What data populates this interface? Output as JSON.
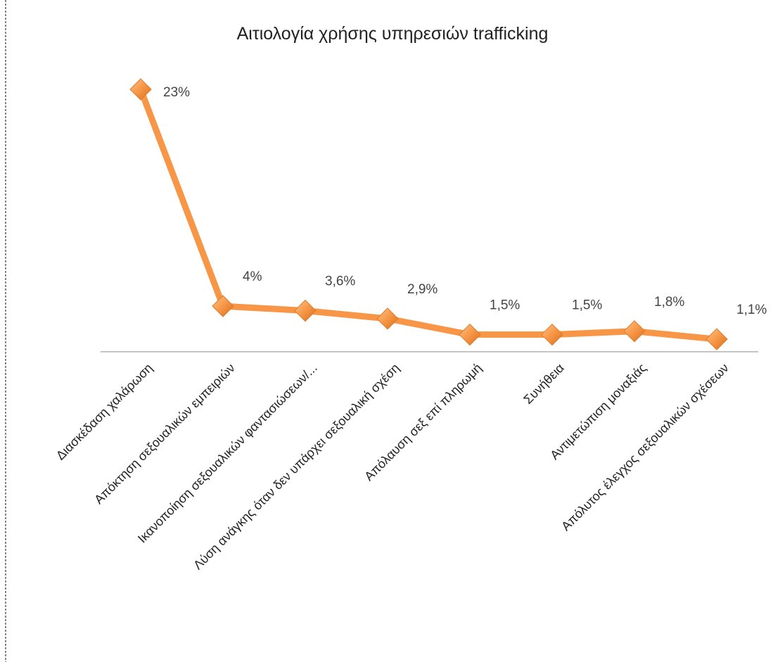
{
  "chart_data": {
    "type": "line",
    "title": "Αιτιολογία χρήσης υπηρεσιών trafficking",
    "categories": [
      "Διασκέδαση χαλάρωση",
      "Απόκτηση σεξουαλικών εμπειριών",
      "Ικανοποίηση σεξουαλικών φαντασιώσεων/...",
      "Λύση ανάγκης όταν δεν υπάρχει σεξουαλική σχέση",
      "Απόλαυση σεξ επί πληρωμή",
      "Συνήθεια",
      "Αντιμετώπιση μοναξιάς",
      "Απόλυτος έλεγχος σεξουαλικών σχέσεων"
    ],
    "series": [
      {
        "name": null,
        "color": "#f79646",
        "values": [
          23,
          4,
          3.6,
          2.9,
          1.5,
          1.5,
          1.8,
          1.1
        ],
        "value_labels": [
          "23%",
          "4%",
          "3,6%",
          "2,9%",
          "1,5%",
          "1,5%",
          "1,8%",
          "1,1%"
        ]
      }
    ]
  }
}
